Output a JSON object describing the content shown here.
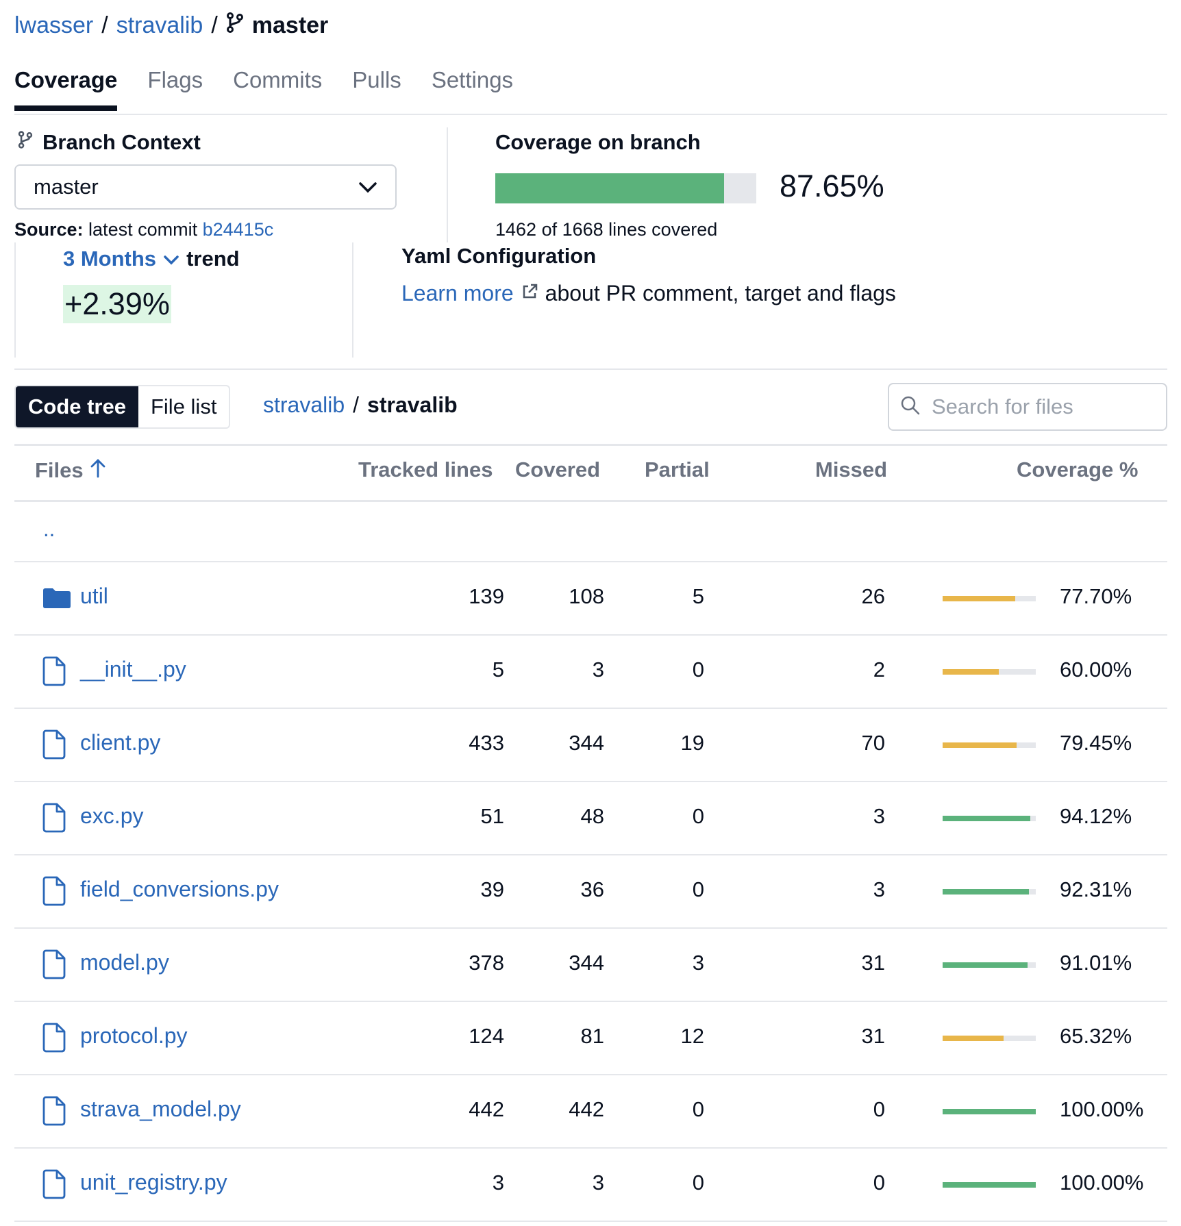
{
  "breadcrumb": {
    "owner": "lwasser",
    "repo": "stravalib",
    "branch": "master"
  },
  "tabs": [
    {
      "label": "Coverage",
      "active": true
    },
    {
      "label": "Flags",
      "active": false
    },
    {
      "label": "Commits",
      "active": false
    },
    {
      "label": "Pulls",
      "active": false
    },
    {
      "label": "Settings",
      "active": false
    }
  ],
  "branch_context": {
    "title": "Branch Context",
    "selected": "master",
    "source_label": "Source:",
    "source_text": "latest commit",
    "commit": "b24415c"
  },
  "coverage": {
    "title": "Coverage on branch",
    "percent_text": "87.65%",
    "percent": 87.65,
    "lines_text": "1462 of 1668 lines covered"
  },
  "trend": {
    "period": "3 Months",
    "label": "trend",
    "value": "+2.39%"
  },
  "yaml": {
    "title": "Yaml Configuration",
    "link": "Learn more",
    "text": "about PR comment, target and flags"
  },
  "view_toggle": {
    "code_tree": "Code tree",
    "file_list": "File list"
  },
  "path": {
    "root": "stravalib",
    "current": "stravalib"
  },
  "search": {
    "placeholder": "Search for files"
  },
  "table": {
    "headers": {
      "files": "Files",
      "tracked": "Tracked lines",
      "covered": "Covered",
      "partial": "Partial",
      "missed": "Missed",
      "coverage": "Coverage %"
    },
    "parent": "..",
    "rows": [
      {
        "name": "util",
        "type": "folder",
        "tracked": "139",
        "covered": "108",
        "partial": "5",
        "missed": "26",
        "pct": "77.70%",
        "value": 77.7
      },
      {
        "name": "__init__.py",
        "type": "file",
        "tracked": "5",
        "covered": "3",
        "partial": "0",
        "missed": "2",
        "pct": "60.00%",
        "value": 60.0
      },
      {
        "name": "client.py",
        "type": "file",
        "tracked": "433",
        "covered": "344",
        "partial": "19",
        "missed": "70",
        "pct": "79.45%",
        "value": 79.45
      },
      {
        "name": "exc.py",
        "type": "file",
        "tracked": "51",
        "covered": "48",
        "partial": "0",
        "missed": "3",
        "pct": "94.12%",
        "value": 94.12
      },
      {
        "name": "field_conversions.py",
        "type": "file",
        "tracked": "39",
        "covered": "36",
        "partial": "0",
        "missed": "3",
        "pct": "92.31%",
        "value": 92.31
      },
      {
        "name": "model.py",
        "type": "file",
        "tracked": "378",
        "covered": "344",
        "partial": "3",
        "missed": "31",
        "pct": "91.01%",
        "value": 91.01
      },
      {
        "name": "protocol.py",
        "type": "file",
        "tracked": "124",
        "covered": "81",
        "partial": "12",
        "missed": "31",
        "pct": "65.32%",
        "value": 65.32
      },
      {
        "name": "strava_model.py",
        "type": "file",
        "tracked": "442",
        "covered": "442",
        "partial": "0",
        "missed": "0",
        "pct": "100.00%",
        "value": 100.0
      },
      {
        "name": "unit_registry.py",
        "type": "file",
        "tracked": "3",
        "covered": "3",
        "partial": "0",
        "missed": "0",
        "pct": "100.00%",
        "value": 100.0
      }
    ]
  },
  "colors": {
    "link": "#2a67b8",
    "good": "#5bb27b",
    "warn": "#e8b64a",
    "dark": "#0f1729"
  }
}
